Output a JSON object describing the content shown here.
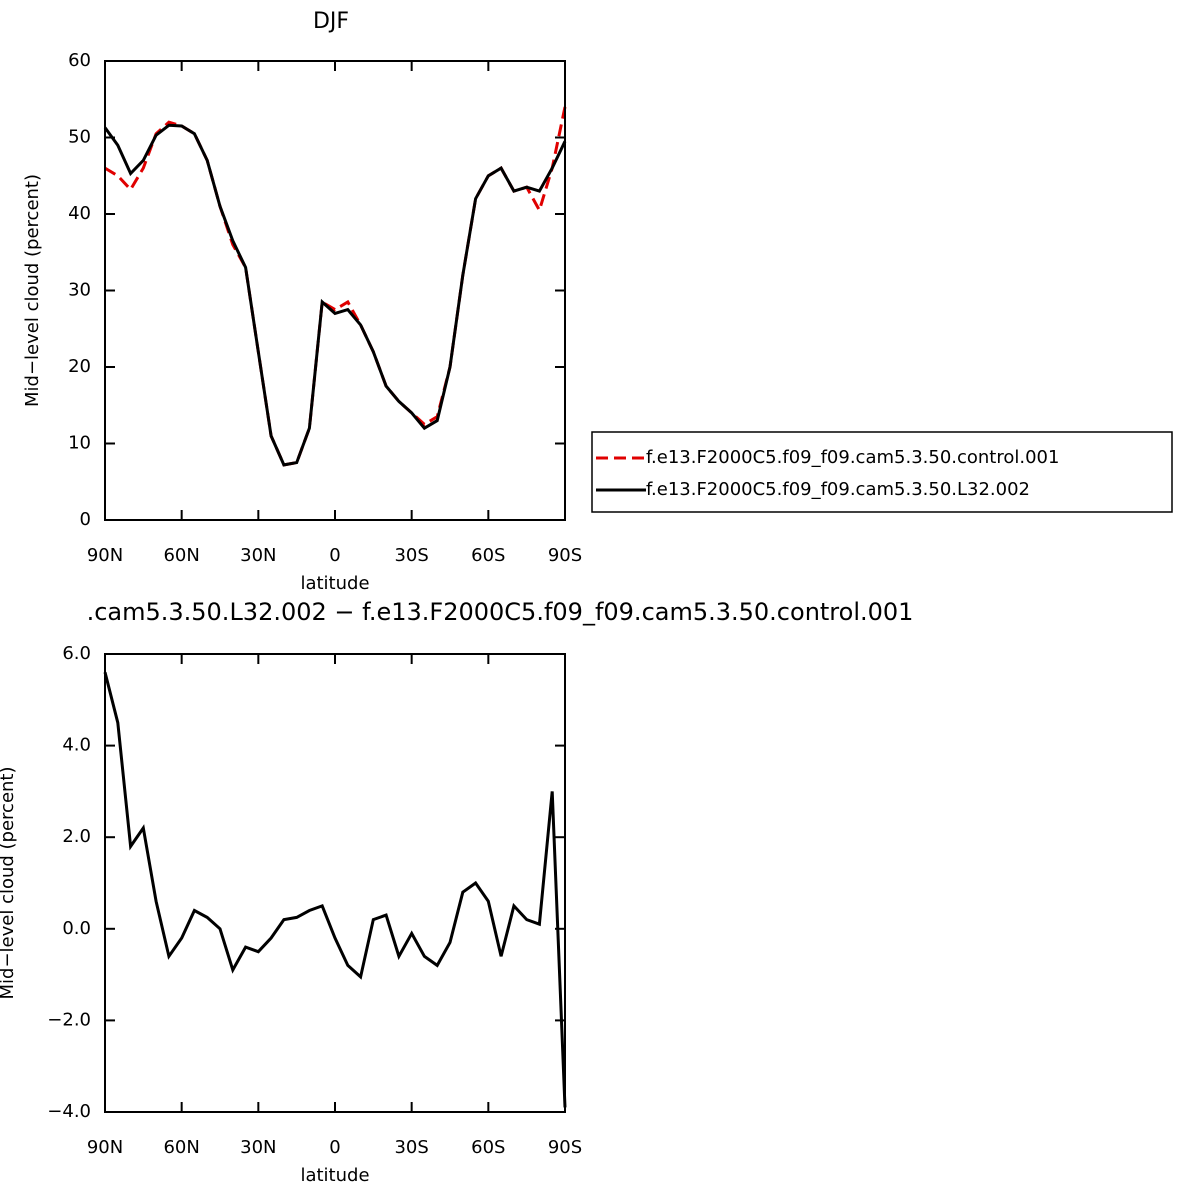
{
  "chart_data": [
    {
      "type": "line",
      "title": "DJF",
      "xlabel": "latitude",
      "ylabel": "Mid−level cloud (percent)",
      "x": [
        90,
        85,
        80,
        75,
        70,
        65,
        60,
        55,
        50,
        45,
        40,
        35,
        30,
        25,
        20,
        15,
        10,
        5,
        0,
        -5,
        -10,
        -15,
        -20,
        -25,
        -30,
        -35,
        -40,
        -45,
        -50,
        -55,
        -60,
        -65,
        -70,
        -75,
        -80,
        -85,
        -90
      ],
      "xlim": [
        90,
        -90
      ],
      "xticks": [
        {
          "value": 90,
          "label": "90N"
        },
        {
          "value": 60,
          "label": "60N"
        },
        {
          "value": 30,
          "label": "30N"
        },
        0,
        {
          "value": -30,
          "label": "30S"
        },
        {
          "value": -60,
          "label": "60S"
        },
        {
          "value": -90,
          "label": "90S"
        }
      ],
      "ylim": [
        0,
        60
      ],
      "yticks": [
        0,
        10,
        20,
        30,
        40,
        50,
        60
      ],
      "series": [
        {
          "name": "f.e13.F2000C5.f09_f09.cam5.3.50.control.001",
          "color": "#e00000",
          "dash": true,
          "values": [
            46,
            45,
            43.2,
            46,
            50.5,
            52,
            51.5,
            50.5,
            47,
            41,
            36,
            33,
            22,
            11,
            7.2,
            7.5,
            12,
            28.5,
            27.5,
            28.5,
            25.5,
            22,
            17.5,
            15.5,
            14,
            12.5,
            13.5,
            20,
            32,
            42,
            45,
            46,
            43,
            43.5,
            40.5,
            46,
            54
          ]
        },
        {
          "name": "f.e13.F2000C5.f09_f09.cam5.3.50.L32.002",
          "color": "#000000",
          "dash": false,
          "values": [
            51.3,
            49,
            45.3,
            47,
            50.3,
            51.6,
            51.5,
            50.5,
            47,
            41,
            36.5,
            33,
            22,
            11,
            7.2,
            7.5,
            12,
            28.5,
            27,
            27.5,
            25.5,
            22,
            17.5,
            15.5,
            14,
            12,
            13,
            20,
            32,
            42,
            45,
            46,
            43,
            43.5,
            43,
            46,
            49.5
          ]
        }
      ]
    },
    {
      "type": "line",
      "title": ".cam5.3.50.L32.002 − f.e13.F2000C5.f09_f09.cam5.3.50.control.001",
      "xlabel": "latitude",
      "ylabel": "Mid−level cloud (percent)",
      "x": [
        90,
        85,
        80,
        75,
        70,
        65,
        60,
        55,
        50,
        45,
        40,
        35,
        30,
        25,
        20,
        15,
        10,
        5,
        0,
        -5,
        -10,
        -15,
        -20,
        -25,
        -30,
        -35,
        -40,
        -45,
        -50,
        -55,
        -60,
        -65,
        -70,
        -75,
        -80,
        -85,
        -90
      ],
      "xlim": [
        90,
        -90
      ],
      "xticks": [
        {
          "value": 90,
          "label": "90N"
        },
        {
          "value": 60,
          "label": "60N"
        },
        {
          "value": 30,
          "label": "30N"
        },
        0,
        {
          "value": -30,
          "label": "30S"
        },
        {
          "value": -60,
          "label": "60S"
        },
        {
          "value": -90,
          "label": "90S"
        }
      ],
      "ylim": [
        -4,
        6
      ],
      "yticks": [
        {
          "value": -4,
          "label": "−4.0"
        },
        {
          "value": -2,
          "label": "−2.0"
        },
        {
          "value": 0,
          "label": "0.0"
        },
        {
          "value": 2,
          "label": "2.0"
        },
        {
          "value": 4,
          "label": "4.0"
        },
        {
          "value": 6,
          "label": "6.0"
        }
      ],
      "series": [
        {
          "color": "#000000",
          "dash": false,
          "values": [
            5.6,
            4.5,
            1.8,
            2.2,
            0.6,
            -0.6,
            -0.2,
            0.4,
            0.25,
            0,
            -0.9,
            -0.4,
            -0.5,
            -0.2,
            0.2,
            0.25,
            0.4,
            0.5,
            -0.2,
            -0.8,
            -1.05,
            0.2,
            0.3,
            -0.6,
            -0.1,
            -0.6,
            -0.8,
            -0.3,
            0.8,
            1,
            0.6,
            -0.6,
            0.5,
            0.2,
            0.1,
            3,
            -3.9
          ]
        }
      ]
    }
  ]
}
